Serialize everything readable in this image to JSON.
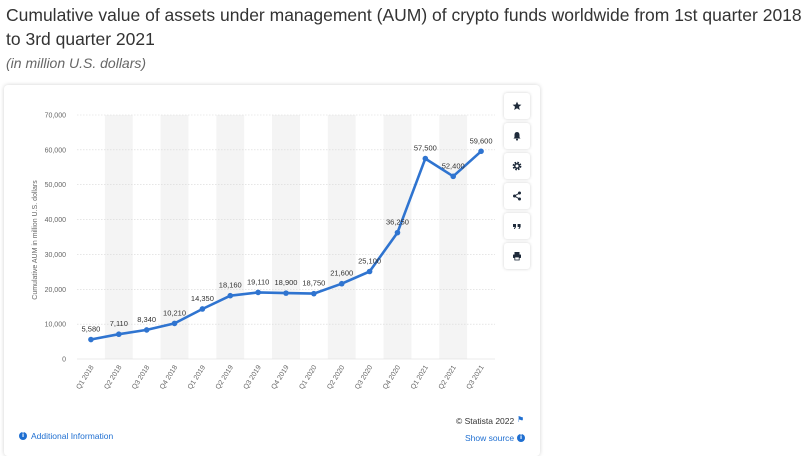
{
  "header": {
    "title": "Cumulative value of assets under management (AUM) of crypto funds worldwide from 1st quarter 2018 to 3rd quarter 2021",
    "subtitle": "(in million U.S. dollars)"
  },
  "footer": {
    "credit": "© Statista 2022",
    "show_source": "Show source",
    "additional_info": "Additional Information"
  },
  "sidebar": {
    "icons": [
      "star-icon",
      "bell-icon",
      "gear-icon",
      "share-icon",
      "quote-icon",
      "print-icon"
    ]
  },
  "colors": {
    "line": "#2f74d0",
    "accent": "#1f6fd1",
    "band": "#f4f4f4",
    "grid": "#d7d7d7"
  },
  "chart_data": {
    "type": "line",
    "title": "",
    "xlabel": "",
    "ylabel": "Cumulative AUM in million U.S. dollars",
    "ylim": [
      0,
      70000
    ],
    "yticks": [
      0,
      10000,
      20000,
      30000,
      40000,
      50000,
      60000,
      70000
    ],
    "ytick_labels": [
      "0",
      "10,000",
      "20,000",
      "30,000",
      "40,000",
      "50,000",
      "60,000",
      "70,000"
    ],
    "categories": [
      "Q1 2018",
      "Q2 2018",
      "Q3 2018",
      "Q4 2018",
      "Q1 2019",
      "Q2 2019",
      "Q3 2019",
      "Q4 2019",
      "Q1 2020",
      "Q2 2020",
      "Q3 2020",
      "Q4 2020",
      "Q1 2021",
      "Q2 2021",
      "Q3 2021"
    ],
    "values": [
      5580,
      7110,
      8340,
      10210,
      14350,
      18160,
      19110,
      18900,
      18750,
      21600,
      25100,
      36250,
      57500,
      52400,
      59600
    ],
    "value_labels": [
      "5,580",
      "7,110",
      "8,340",
      "10,210",
      "14,350",
      "18,160",
      "19,110",
      "18,900",
      "18,750",
      "21,600",
      "25,100",
      "36,250",
      "57,500",
      "52,400",
      "59,600"
    ],
    "grid": true,
    "legend": "none"
  }
}
